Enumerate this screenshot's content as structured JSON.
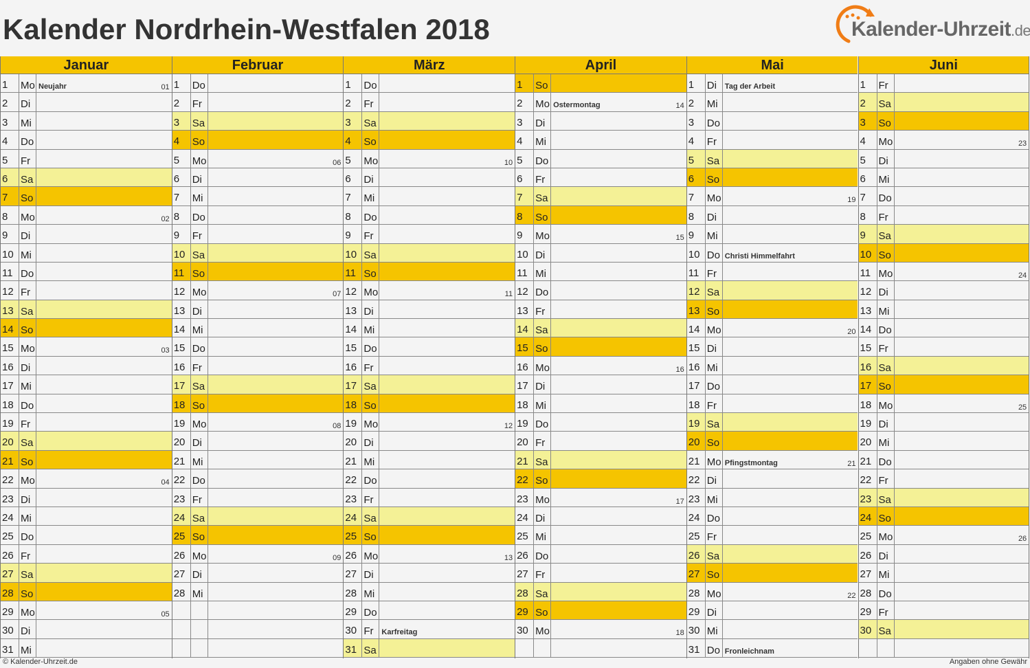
{
  "title": "Kalender Nordrhein-Westfalen 2018",
  "logo": {
    "text": "Kalender-Uhrzeit",
    "tld": ".de"
  },
  "footer": {
    "left": "© Kalender-Uhrzeit.de",
    "right": "Angaben ohne Gewähr"
  },
  "colors": {
    "sunday": "#f5c400",
    "saturday": "#f4f196",
    "header": "#f5c400",
    "background": "#f4f4f4"
  },
  "months": [
    {
      "name": "Januar",
      "days": [
        {
          "d": "1",
          "w": "Mo",
          "h": "Neujahr",
          "kw": "01"
        },
        {
          "d": "2",
          "w": "Di"
        },
        {
          "d": "3",
          "w": "Mi"
        },
        {
          "d": "4",
          "w": "Do"
        },
        {
          "d": "5",
          "w": "Fr"
        },
        {
          "d": "6",
          "w": "Sa"
        },
        {
          "d": "7",
          "w": "So"
        },
        {
          "d": "8",
          "w": "Mo",
          "kw": "02"
        },
        {
          "d": "9",
          "w": "Di"
        },
        {
          "d": "10",
          "w": "Mi"
        },
        {
          "d": "11",
          "w": "Do"
        },
        {
          "d": "12",
          "w": "Fr"
        },
        {
          "d": "13",
          "w": "Sa"
        },
        {
          "d": "14",
          "w": "So"
        },
        {
          "d": "15",
          "w": "Mo",
          "kw": "03"
        },
        {
          "d": "16",
          "w": "Di"
        },
        {
          "d": "17",
          "w": "Mi"
        },
        {
          "d": "18",
          "w": "Do"
        },
        {
          "d": "19",
          "w": "Fr"
        },
        {
          "d": "20",
          "w": "Sa"
        },
        {
          "d": "21",
          "w": "So"
        },
        {
          "d": "22",
          "w": "Mo",
          "kw": "04"
        },
        {
          "d": "23",
          "w": "Di"
        },
        {
          "d": "24",
          "w": "Mi"
        },
        {
          "d": "25",
          "w": "Do"
        },
        {
          "d": "26",
          "w": "Fr"
        },
        {
          "d": "27",
          "w": "Sa"
        },
        {
          "d": "28",
          "w": "So"
        },
        {
          "d": "29",
          "w": "Mo",
          "kw": "05"
        },
        {
          "d": "30",
          "w": "Di"
        },
        {
          "d": "31",
          "w": "Mi"
        }
      ]
    },
    {
      "name": "Februar",
      "days": [
        {
          "d": "1",
          "w": "Do"
        },
        {
          "d": "2",
          "w": "Fr"
        },
        {
          "d": "3",
          "w": "Sa"
        },
        {
          "d": "4",
          "w": "So"
        },
        {
          "d": "5",
          "w": "Mo",
          "kw": "06"
        },
        {
          "d": "6",
          "w": "Di"
        },
        {
          "d": "7",
          "w": "Mi"
        },
        {
          "d": "8",
          "w": "Do"
        },
        {
          "d": "9",
          "w": "Fr"
        },
        {
          "d": "10",
          "w": "Sa"
        },
        {
          "d": "11",
          "w": "So"
        },
        {
          "d": "12",
          "w": "Mo",
          "kw": "07"
        },
        {
          "d": "13",
          "w": "Di"
        },
        {
          "d": "14",
          "w": "Mi"
        },
        {
          "d": "15",
          "w": "Do"
        },
        {
          "d": "16",
          "w": "Fr"
        },
        {
          "d": "17",
          "w": "Sa"
        },
        {
          "d": "18",
          "w": "So"
        },
        {
          "d": "19",
          "w": "Mo",
          "kw": "08"
        },
        {
          "d": "20",
          "w": "Di"
        },
        {
          "d": "21",
          "w": "Mi"
        },
        {
          "d": "22",
          "w": "Do"
        },
        {
          "d": "23",
          "w": "Fr"
        },
        {
          "d": "24",
          "w": "Sa"
        },
        {
          "d": "25",
          "w": "So"
        },
        {
          "d": "26",
          "w": "Mo",
          "kw": "09"
        },
        {
          "d": "27",
          "w": "Di"
        },
        {
          "d": "28",
          "w": "Mi"
        }
      ]
    },
    {
      "name": "März",
      "days": [
        {
          "d": "1",
          "w": "Do"
        },
        {
          "d": "2",
          "w": "Fr"
        },
        {
          "d": "3",
          "w": "Sa"
        },
        {
          "d": "4",
          "w": "So"
        },
        {
          "d": "5",
          "w": "Mo",
          "kw": "10"
        },
        {
          "d": "6",
          "w": "Di"
        },
        {
          "d": "7",
          "w": "Mi"
        },
        {
          "d": "8",
          "w": "Do"
        },
        {
          "d": "9",
          "w": "Fr"
        },
        {
          "d": "10",
          "w": "Sa"
        },
        {
          "d": "11",
          "w": "So"
        },
        {
          "d": "12",
          "w": "Mo",
          "kw": "11"
        },
        {
          "d": "13",
          "w": "Di"
        },
        {
          "d": "14",
          "w": "Mi"
        },
        {
          "d": "15",
          "w": "Do"
        },
        {
          "d": "16",
          "w": "Fr"
        },
        {
          "d": "17",
          "w": "Sa"
        },
        {
          "d": "18",
          "w": "So"
        },
        {
          "d": "19",
          "w": "Mo",
          "kw": "12"
        },
        {
          "d": "20",
          "w": "Di"
        },
        {
          "d": "21",
          "w": "Mi"
        },
        {
          "d": "22",
          "w": "Do"
        },
        {
          "d": "23",
          "w": "Fr"
        },
        {
          "d": "24",
          "w": "Sa"
        },
        {
          "d": "25",
          "w": "So"
        },
        {
          "d": "26",
          "w": "Mo",
          "kw": "13"
        },
        {
          "d": "27",
          "w": "Di"
        },
        {
          "d": "28",
          "w": "Mi"
        },
        {
          "d": "29",
          "w": "Do"
        },
        {
          "d": "30",
          "w": "Fr",
          "h": "Karfreitag"
        },
        {
          "d": "31",
          "w": "Sa"
        }
      ]
    },
    {
      "name": "April",
      "days": [
        {
          "d": "1",
          "w": "So"
        },
        {
          "d": "2",
          "w": "Mo",
          "h": "Ostermontag",
          "kw": "14"
        },
        {
          "d": "3",
          "w": "Di"
        },
        {
          "d": "4",
          "w": "Mi"
        },
        {
          "d": "5",
          "w": "Do"
        },
        {
          "d": "6",
          "w": "Fr"
        },
        {
          "d": "7",
          "w": "Sa"
        },
        {
          "d": "8",
          "w": "So"
        },
        {
          "d": "9",
          "w": "Mo",
          "kw": "15"
        },
        {
          "d": "10",
          "w": "Di"
        },
        {
          "d": "11",
          "w": "Mi"
        },
        {
          "d": "12",
          "w": "Do"
        },
        {
          "d": "13",
          "w": "Fr"
        },
        {
          "d": "14",
          "w": "Sa"
        },
        {
          "d": "15",
          "w": "So"
        },
        {
          "d": "16",
          "w": "Mo",
          "kw": "16"
        },
        {
          "d": "17",
          "w": "Di"
        },
        {
          "d": "18",
          "w": "Mi"
        },
        {
          "d": "19",
          "w": "Do"
        },
        {
          "d": "20",
          "w": "Fr"
        },
        {
          "d": "21",
          "w": "Sa"
        },
        {
          "d": "22",
          "w": "So"
        },
        {
          "d": "23",
          "w": "Mo",
          "kw": "17"
        },
        {
          "d": "24",
          "w": "Di"
        },
        {
          "d": "25",
          "w": "Mi"
        },
        {
          "d": "26",
          "w": "Do"
        },
        {
          "d": "27",
          "w": "Fr"
        },
        {
          "d": "28",
          "w": "Sa"
        },
        {
          "d": "29",
          "w": "So"
        },
        {
          "d": "30",
          "w": "Mo",
          "kw": "18"
        }
      ]
    },
    {
      "name": "Mai",
      "days": [
        {
          "d": "1",
          "w": "Di",
          "h": "Tag der Arbeit"
        },
        {
          "d": "2",
          "w": "Mi"
        },
        {
          "d": "3",
          "w": "Do"
        },
        {
          "d": "4",
          "w": "Fr"
        },
        {
          "d": "5",
          "w": "Sa"
        },
        {
          "d": "6",
          "w": "So"
        },
        {
          "d": "7",
          "w": "Mo",
          "kw": "19"
        },
        {
          "d": "8",
          "w": "Di"
        },
        {
          "d": "9",
          "w": "Mi"
        },
        {
          "d": "10",
          "w": "Do",
          "h": "Christi Himmelfahrt"
        },
        {
          "d": "11",
          "w": "Fr"
        },
        {
          "d": "12",
          "w": "Sa"
        },
        {
          "d": "13",
          "w": "So"
        },
        {
          "d": "14",
          "w": "Mo",
          "kw": "20"
        },
        {
          "d": "15",
          "w": "Di"
        },
        {
          "d": "16",
          "w": "Mi"
        },
        {
          "d": "17",
          "w": "Do"
        },
        {
          "d": "18",
          "w": "Fr"
        },
        {
          "d": "19",
          "w": "Sa"
        },
        {
          "d": "20",
          "w": "So"
        },
        {
          "d": "21",
          "w": "Mo",
          "h": "Pfingstmontag",
          "kw": "21"
        },
        {
          "d": "22",
          "w": "Di"
        },
        {
          "d": "23",
          "w": "Mi"
        },
        {
          "d": "24",
          "w": "Do"
        },
        {
          "d": "25",
          "w": "Fr"
        },
        {
          "d": "26",
          "w": "Sa"
        },
        {
          "d": "27",
          "w": "So"
        },
        {
          "d": "28",
          "w": "Mo",
          "kw": "22"
        },
        {
          "d": "29",
          "w": "Di"
        },
        {
          "d": "30",
          "w": "Mi"
        },
        {
          "d": "31",
          "w": "Do",
          "h": "Fronleichnam"
        }
      ]
    },
    {
      "name": "Juni",
      "days": [
        {
          "d": "1",
          "w": "Fr"
        },
        {
          "d": "2",
          "w": "Sa"
        },
        {
          "d": "3",
          "w": "So"
        },
        {
          "d": "4",
          "w": "Mo",
          "kw": "23"
        },
        {
          "d": "5",
          "w": "Di"
        },
        {
          "d": "6",
          "w": "Mi"
        },
        {
          "d": "7",
          "w": "Do"
        },
        {
          "d": "8",
          "w": "Fr"
        },
        {
          "d": "9",
          "w": "Sa"
        },
        {
          "d": "10",
          "w": "So"
        },
        {
          "d": "11",
          "w": "Mo",
          "kw": "24"
        },
        {
          "d": "12",
          "w": "Di"
        },
        {
          "d": "13",
          "w": "Mi"
        },
        {
          "d": "14",
          "w": "Do"
        },
        {
          "d": "15",
          "w": "Fr"
        },
        {
          "d": "16",
          "w": "Sa"
        },
        {
          "d": "17",
          "w": "So"
        },
        {
          "d": "18",
          "w": "Mo",
          "kw": "25"
        },
        {
          "d": "19",
          "w": "Di"
        },
        {
          "d": "20",
          "w": "Mi"
        },
        {
          "d": "21",
          "w": "Do"
        },
        {
          "d": "22",
          "w": "Fr"
        },
        {
          "d": "23",
          "w": "Sa"
        },
        {
          "d": "24",
          "w": "So"
        },
        {
          "d": "25",
          "w": "Mo",
          "kw": "26"
        },
        {
          "d": "26",
          "w": "Di"
        },
        {
          "d": "27",
          "w": "Mi"
        },
        {
          "d": "28",
          "w": "Do"
        },
        {
          "d": "29",
          "w": "Fr"
        },
        {
          "d": "30",
          "w": "Sa"
        }
      ]
    }
  ]
}
